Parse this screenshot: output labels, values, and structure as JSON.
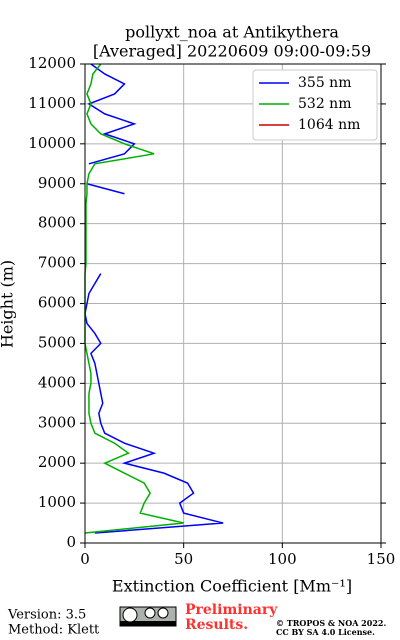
{
  "chart_data": {
    "type": "line",
    "title": "pollyxt_noa at Antikythera",
    "subtitle": "[Averaged] 20220609 09:00-09:59",
    "x_label": "Extinction Coefficient [Mm⁻¹]",
    "y_label": "Height (m)",
    "heights": [
      250,
      500,
      750,
      1000,
      1250,
      1500,
      1750,
      2000,
      2250,
      2500,
      2750,
      3000,
      3250,
      3500,
      3750,
      4000,
      4250,
      4500,
      4750,
      5000,
      5250,
      5500,
      5750,
      6000,
      6250,
      6500,
      6750,
      7000,
      7250,
      7500,
      7750,
      8000,
      8250,
      8500,
      8750,
      9000,
      9250,
      9500,
      9750,
      10000,
      10250,
      10500,
      10750,
      11000,
      11250,
      11500,
      11750,
      12000
    ],
    "series": [
      {
        "name": "355 nm",
        "color": "#0000ff",
        "values": [
          5,
          70,
          50,
          48,
          55,
          52,
          40,
          20,
          35,
          20,
          10,
          8,
          7,
          9,
          8,
          7,
          6,
          5,
          3,
          8,
          5,
          1,
          0,
          1,
          2,
          5,
          8,
          null,
          null,
          null,
          null,
          null,
          2,
          null,
          20,
          1,
          null,
          2,
          20,
          25,
          10,
          25,
          10,
          2,
          15,
          20,
          10,
          3
        ]
      },
      {
        "name": "532 nm",
        "color": "#00b000",
        "values": [
          0,
          50,
          28,
          30,
          33,
          30,
          20,
          10,
          22,
          15,
          5,
          3,
          2,
          2,
          2,
          3,
          3,
          2,
          1,
          0,
          0,
          0,
          0,
          0,
          0,
          0,
          0,
          0.5,
          0.5,
          0.5,
          0.5,
          0.5,
          0.5,
          0.5,
          1,
          1,
          2,
          5,
          35,
          20,
          8,
          3,
          1,
          3,
          1,
          3,
          4,
          8
        ]
      },
      {
        "name": "1064 nm",
        "color": "#d00000",
        "values": [
          null,
          null,
          null,
          null,
          null,
          null,
          null,
          null,
          null,
          null,
          null,
          null,
          null,
          null,
          null,
          null,
          null,
          null,
          null,
          null,
          null,
          null,
          null,
          null,
          null,
          null,
          null,
          null,
          null,
          null,
          null,
          null,
          null,
          null,
          null,
          null,
          null,
          null,
          null,
          null,
          null,
          null,
          null,
          null,
          null,
          null,
          null,
          null
        ]
      }
    ],
    "xlim": [
      0,
      150
    ],
    "xticks": [
      0,
      50,
      100,
      150
    ],
    "ylim": [
      0,
      12000
    ],
    "yticks": [
      0,
      1000,
      2000,
      3000,
      4000,
      5000,
      6000,
      7000,
      8000,
      9000,
      10000,
      11000,
      12000
    ],
    "grid": true,
    "legend": "upper right"
  },
  "footer": {
    "version": "Version: 3.5",
    "method": "Method: Klett",
    "preliminary": [
      "Preliminary",
      "Results."
    ],
    "copyright": [
      "© TROPOS & NOA 2022.",
      "CC BY SA 4.0 License."
    ]
  }
}
